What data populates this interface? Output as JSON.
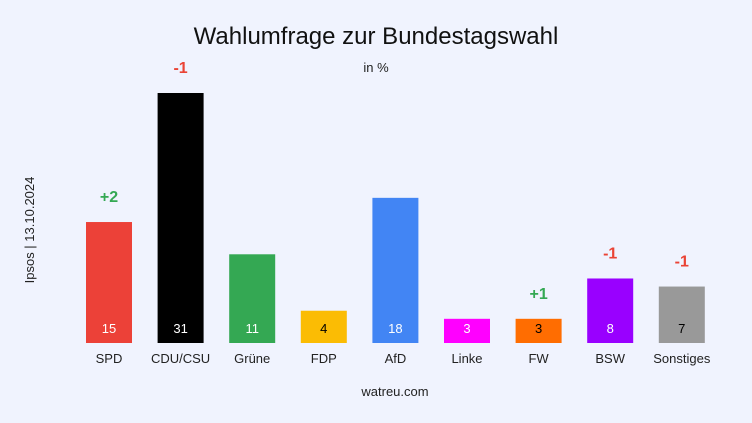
{
  "chart_data": {
    "type": "bar",
    "title": "Wahlumfrage zur Bundestagswahl",
    "subtitle": "in %",
    "ylabel": "Ipsos | 13.10.2024",
    "source": "watreu.com",
    "ylim": [
      0,
      31
    ],
    "grid": false,
    "categories": [
      "SPD",
      "CDU/CSU",
      "Grüne",
      "FDP",
      "AfD",
      "Linke",
      "FW",
      "BSW",
      "Sonstiges"
    ],
    "values": [
      15,
      31,
      11,
      4,
      18,
      3,
      3,
      8,
      7
    ],
    "changes": [
      "+2",
      "-1",
      "",
      "",
      "",
      "",
      "+1",
      "-1",
      "-1"
    ],
    "colors": [
      "#ec4138",
      "#000000",
      "#34a853",
      "#fbbc04",
      "#4285f4",
      "#ff00ff",
      "#ff6d01",
      "#9900ff",
      "#999999"
    ],
    "value_label_colors": [
      "#ffffff",
      "#ffffff",
      "#ffffff",
      "#000000",
      "#ffffff",
      "#ffffff",
      "#000000",
      "#ffffff",
      "#000000"
    ],
    "change_colors": {
      "positive": "#34a853",
      "negative": "#ea4335"
    }
  }
}
